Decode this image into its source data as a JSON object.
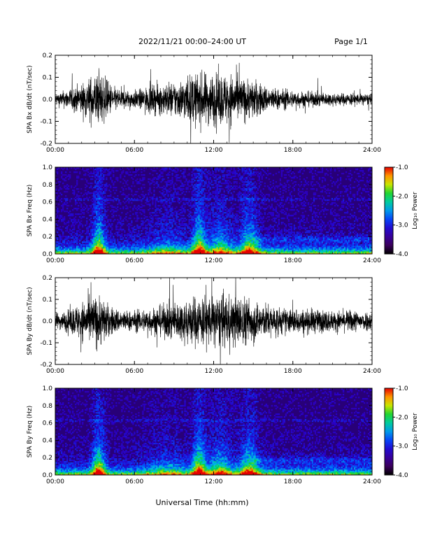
{
  "header": {
    "title": "2022/11/21  00:00–24:00 UT",
    "page": "Page 1/1"
  },
  "xlabel": "Universal Time (hh:mm)",
  "chart_data": [
    {
      "type": "line",
      "ylabel": "SPA Bx dB/dt (nT/sec)",
      "xlim": [
        0,
        24
      ],
      "ylim": [
        -0.2,
        0.2
      ],
      "x_ticks": [
        "00:00",
        "06:00",
        "12:00",
        "18:00",
        "24:00"
      ],
      "y_ticks": [
        "-0.2",
        "-0.1",
        "0.0",
        "0.1",
        "0.2"
      ],
      "color": "#000000",
      "x": [
        0,
        0.5,
        1,
        1.5,
        2,
        2.5,
        3,
        3.5,
        4,
        4.5,
        5,
        5.5,
        6,
        6.5,
        7,
        7.5,
        8,
        8.5,
        9,
        9.5,
        10,
        10.5,
        11,
        11.5,
        12,
        12.5,
        13,
        13.5,
        14,
        14.5,
        15,
        15.5,
        16,
        16.5,
        17,
        17.5,
        18,
        18.5,
        19,
        19.5,
        20,
        20.5,
        21,
        21.5,
        22,
        22.5,
        23,
        23.5,
        24
      ],
      "envelope": [
        0.05,
        0.06,
        0.08,
        0.1,
        0.12,
        0.16,
        0.2,
        0.2,
        0.14,
        0.09,
        0.08,
        0.07,
        0.07,
        0.08,
        0.1,
        0.11,
        0.12,
        0.13,
        0.14,
        0.15,
        0.18,
        0.2,
        0.2,
        0.2,
        0.2,
        0.2,
        0.2,
        0.2,
        0.17,
        0.16,
        0.15,
        0.13,
        0.1,
        0.09,
        0.08,
        0.075,
        0.07,
        0.065,
        0.06,
        0.058,
        0.055,
        0.052,
        0.05,
        0.05,
        0.048,
        0.05,
        0.045,
        0.045,
        0.04
      ]
    },
    {
      "type": "heatmap",
      "ylabel": "SPA Bx Freq (Hz)",
      "xlim": [
        0,
        24
      ],
      "ylim": [
        0,
        1
      ],
      "x_ticks": [
        "00:00",
        "06:00",
        "12:00",
        "18:00",
        "24:00"
      ],
      "y_ticks": [
        "0.0",
        "0.2",
        "0.4",
        "0.6",
        "0.8",
        "1.0"
      ],
      "colorbar": {
        "label": "Log₁₀ Power",
        "range": [
          -4,
          -1
        ],
        "ticks": [
          "-1.0",
          "-2.0",
          "-3.0",
          "-4.0"
        ]
      },
      "bursts": [
        {
          "t": 3.3,
          "w": 0.5,
          "strength": 1.0
        },
        {
          "t": 10.9,
          "w": 0.5,
          "strength": 1.0
        },
        {
          "t": 12.5,
          "w": 0.9,
          "strength": 0.6
        },
        {
          "t": 14.7,
          "w": 0.7,
          "strength": 0.85
        },
        {
          "t": 8.5,
          "w": 1.5,
          "strength": 0.3
        }
      ]
    },
    {
      "type": "line",
      "ylabel": "SPA By dB/dt (nT/sec)",
      "xlim": [
        0,
        24
      ],
      "ylim": [
        -0.2,
        0.2
      ],
      "x_ticks": [
        "00:00",
        "06:00",
        "12:00",
        "18:00",
        "24:00"
      ],
      "y_ticks": [
        "-0.2",
        "-0.1",
        "0.0",
        "0.1",
        "0.2"
      ],
      "color": "#000000",
      "x": [
        0,
        0.5,
        1,
        1.5,
        2,
        2.5,
        3,
        3.5,
        4,
        4.5,
        5,
        5.5,
        6,
        6.5,
        7,
        7.5,
        8,
        8.5,
        9,
        9.5,
        10,
        10.5,
        11,
        11.5,
        12,
        12.5,
        13,
        13.5,
        14,
        14.5,
        15,
        15.5,
        16,
        16.5,
        17,
        17.5,
        18,
        18.5,
        19,
        19.5,
        20,
        20.5,
        21,
        21.5,
        22,
        22.5,
        23,
        23.5,
        24
      ],
      "envelope": [
        0.06,
        0.07,
        0.09,
        0.12,
        0.15,
        0.18,
        0.2,
        0.2,
        0.13,
        0.1,
        0.09,
        0.08,
        0.08,
        0.09,
        0.1,
        0.11,
        0.12,
        0.14,
        0.15,
        0.16,
        0.18,
        0.2,
        0.2,
        0.2,
        0.2,
        0.2,
        0.2,
        0.2,
        0.2,
        0.19,
        0.17,
        0.15,
        0.13,
        0.12,
        0.11,
        0.1,
        0.1,
        0.1,
        0.09,
        0.1,
        0.09,
        0.09,
        0.08,
        0.08,
        0.08,
        0.09,
        0.08,
        0.08,
        0.07
      ]
    },
    {
      "type": "heatmap",
      "ylabel": "SPA By Freq (Hz)",
      "xlim": [
        0,
        24
      ],
      "ylim": [
        0,
        1
      ],
      "x_ticks": [
        "00:00",
        "06:00",
        "12:00",
        "18:00",
        "24:00"
      ],
      "y_ticks": [
        "0.0",
        "0.2",
        "0.4",
        "0.6",
        "0.8",
        "1.0"
      ],
      "colorbar": {
        "label": "Log₁₀ Power",
        "range": [
          -4,
          -1
        ],
        "ticks": [
          "-1.0",
          "-2.0",
          "-3.0",
          "-4.0"
        ]
      },
      "bursts": [
        {
          "t": 3.3,
          "w": 0.5,
          "strength": 1.0
        },
        {
          "t": 10.9,
          "w": 0.5,
          "strength": 1.0
        },
        {
          "t": 12.5,
          "w": 0.9,
          "strength": 0.65
        },
        {
          "t": 14.7,
          "w": 0.7,
          "strength": 0.85
        },
        {
          "t": 8.5,
          "w": 1.5,
          "strength": 0.3
        }
      ]
    }
  ]
}
